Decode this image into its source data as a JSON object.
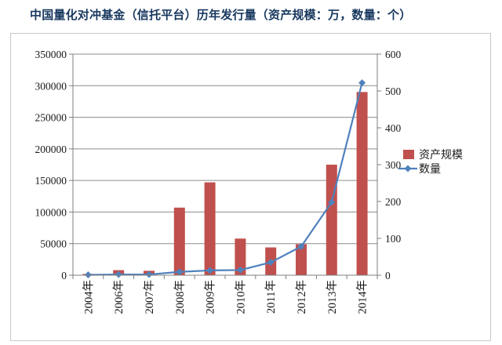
{
  "title": "中国量化对冲基金（信托平台）历年发行量（资产规模：万，数量：个）",
  "chart_data": {
    "type": "bar+line",
    "title": "中国量化对冲基金（信托平台）历年发行量（资产规模：万，数量：个）",
    "categories": [
      "2004年",
      "2006年",
      "2007年",
      "2008年",
      "2009年",
      "2010年",
      "2011年",
      "2012年",
      "2013年",
      "2014年"
    ],
    "series": [
      {
        "name": "资产规模",
        "type": "bar",
        "axis": "left",
        "color": "#c0504d",
        "values": [
          2000,
          8000,
          7000,
          107000,
          147000,
          58000,
          44000,
          49000,
          175000,
          290000
        ]
      },
      {
        "name": "数量",
        "type": "line",
        "axis": "right",
        "color": "#4f81bd",
        "values": [
          1,
          2,
          2,
          9,
          13,
          14,
          35,
          78,
          198,
          522
        ]
      }
    ],
    "y_left": {
      "min": 0,
      "max": 350000,
      "ticks": [
        "0",
        "50000",
        "100000",
        "150000",
        "200000",
        "250000",
        "300000",
        "350000"
      ]
    },
    "y_right": {
      "min": 0,
      "max": 600,
      "ticks": [
        "0",
        "100",
        "200",
        "300",
        "400",
        "500",
        "600"
      ]
    },
    "grid": true,
    "legend_position": "right"
  }
}
